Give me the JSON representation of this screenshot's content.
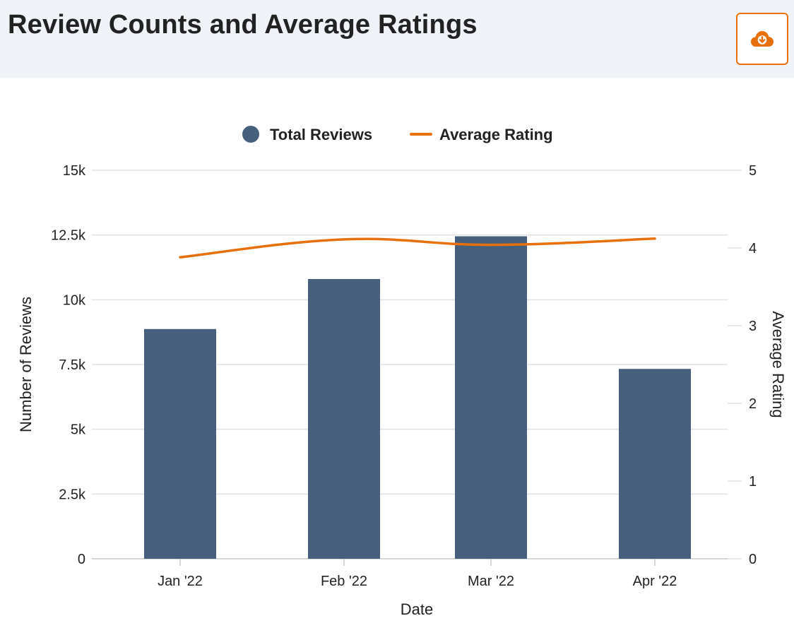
{
  "header": {
    "title": "Review Counts and Average Ratings",
    "download_icon": "cloud-download-icon"
  },
  "colors": {
    "bar": "#465f7d",
    "line": "#e8700c",
    "grid": "#e0e0e0",
    "header_bg": "#eff2f7",
    "accent": "#e8700c"
  },
  "chart_data": {
    "type": "bar",
    "categories": [
      "Jan '22",
      "Feb '22",
      "Mar '22",
      "Apr '22"
    ],
    "series": [
      {
        "name": "Total Reviews",
        "type": "bar",
        "axis": "left",
        "values": [
          8870,
          10800,
          12450,
          7330
        ]
      },
      {
        "name": "Average Rating",
        "type": "line",
        "axis": "right",
        "values": [
          3.88,
          4.11,
          4.04,
          4.12
        ]
      }
    ],
    "xlabel": "Date",
    "ylabel": "Number of Reviews",
    "y2label": "Average Rating",
    "ylim": [
      0,
      15000
    ],
    "y2lim": [
      0,
      5
    ],
    "yticks": [
      "0",
      "2.5k",
      "5k",
      "7.5k",
      "10k",
      "12.5k",
      "15k"
    ],
    "y2ticks": [
      "0",
      "1",
      "2",
      "3",
      "4",
      "5"
    ],
    "grid": true,
    "legend_position": "top-center"
  }
}
